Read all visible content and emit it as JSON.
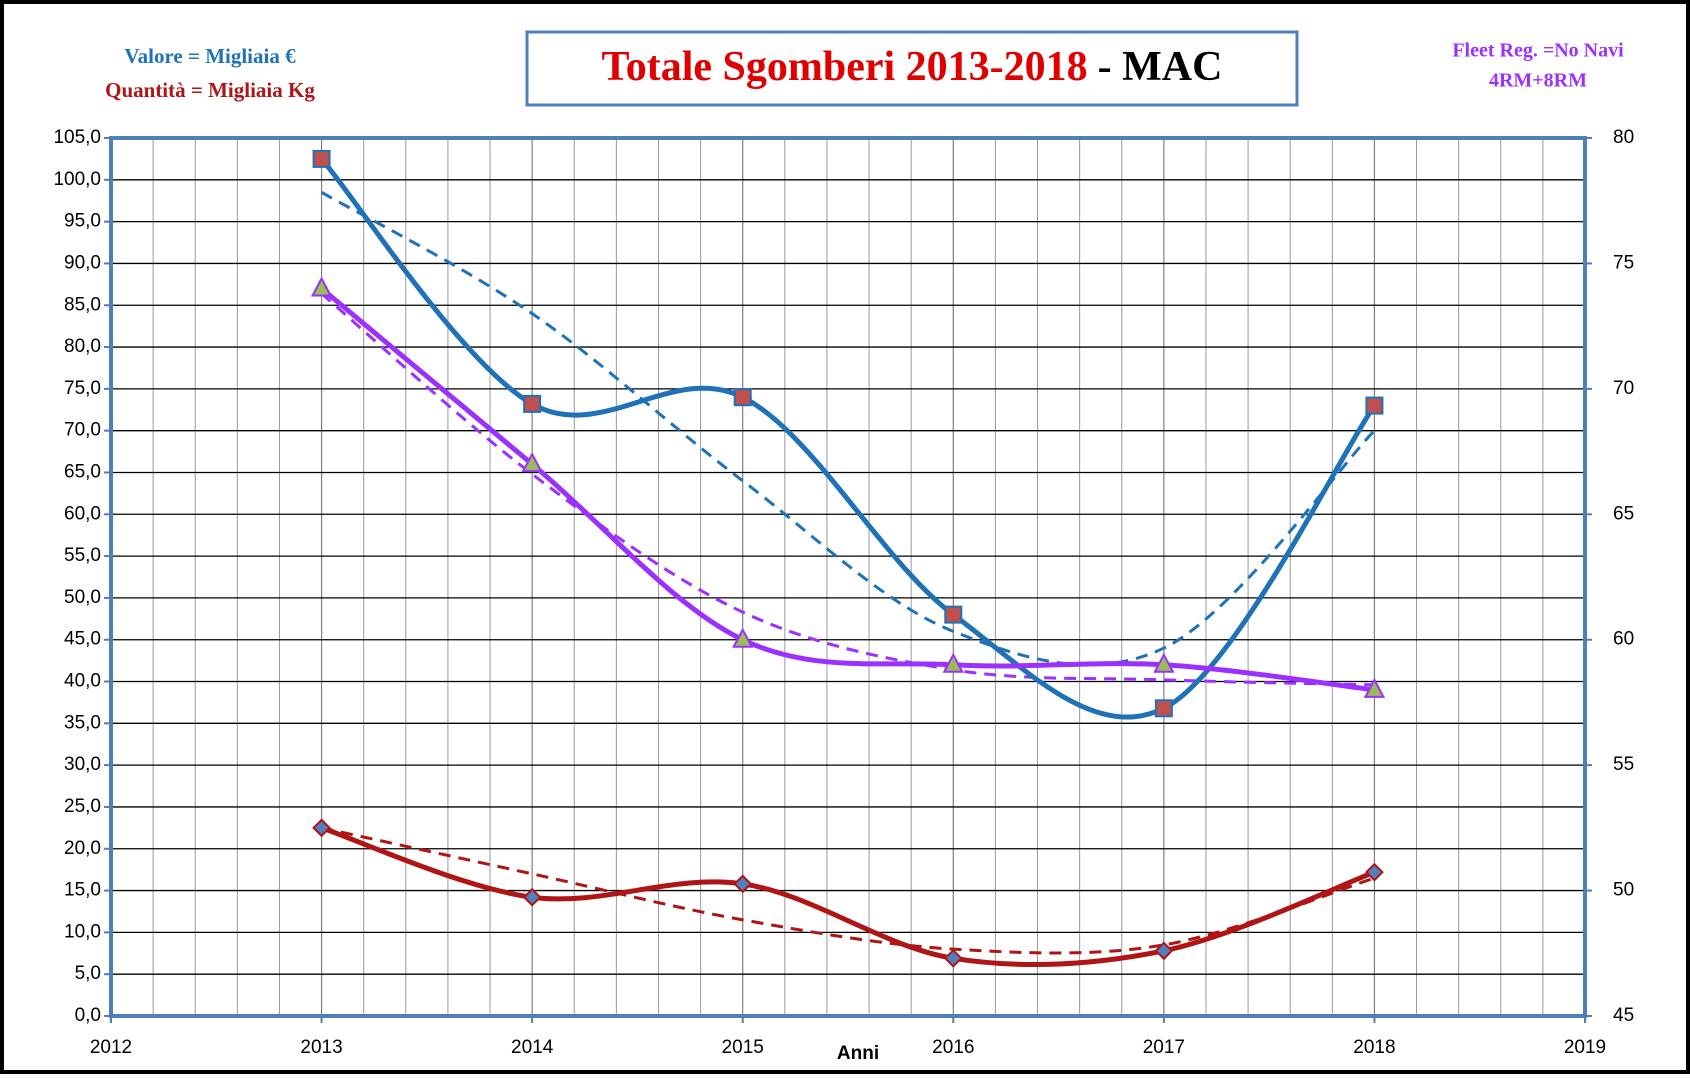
{
  "chart_data": {
    "type": "line",
    "title": "Totale Sgomberi 2013-2018",
    "title_suffix": "- MAC",
    "annotations": [
      "Valore = Migliaia €",
      "Quantità = Migliaia Kg",
      "Fleet Reg. =No Navi",
      "4RM+8RM"
    ],
    "xlabel": "Anni",
    "x": [
      2013,
      2014,
      2015,
      2016,
      2017,
      2018
    ],
    "xlim": [
      2012,
      2019
    ],
    "xticks": [
      2012,
      2013,
      2014,
      2015,
      2016,
      2017,
      2018,
      2019
    ],
    "ylim": [
      0,
      105
    ],
    "yticks": [
      {
        "value": 0,
        "label": "0,0"
      },
      {
        "value": 5,
        "label": "5,0"
      },
      {
        "value": 10,
        "label": "10,0"
      },
      {
        "value": 15,
        "label": "15,0"
      },
      {
        "value": 20,
        "label": "20,0"
      },
      {
        "value": 25,
        "label": "25,0"
      },
      {
        "value": 30,
        "label": "30,0"
      },
      {
        "value": 35,
        "label": "35,0"
      },
      {
        "value": 40,
        "label": "40,0"
      },
      {
        "value": 45,
        "label": "45,0"
      },
      {
        "value": 50,
        "label": "50,0"
      },
      {
        "value": 55,
        "label": "55,0"
      },
      {
        "value": 60,
        "label": "60,0"
      },
      {
        "value": 65,
        "label": "65,0"
      },
      {
        "value": 70,
        "label": "70,0"
      },
      {
        "value": 75,
        "label": "75,0"
      },
      {
        "value": 80,
        "label": "80,0"
      },
      {
        "value": 85,
        "label": "85,0"
      },
      {
        "value": 90,
        "label": "90,0"
      },
      {
        "value": 95,
        "label": "95,0"
      },
      {
        "value": 100,
        "label": "100,0"
      },
      {
        "value": 105,
        "label": "105,0"
      }
    ],
    "y2lim": [
      45,
      80
    ],
    "y2ticks": [
      45,
      50,
      55,
      60,
      65,
      70,
      75,
      80
    ],
    "grid": true,
    "series": [
      {
        "color": "#1f72b8",
        "marker": "square",
        "marker_fill": "#c0504d",
        "values": [
          102.5,
          73.2,
          74.0,
          48.0,
          36.8,
          73.0
        ]
      },
      {
        "color": "#b01414",
        "marker": "diamond",
        "marker_fill": "#4f81bd",
        "values": [
          22.5,
          14.2,
          15.8,
          6.9,
          7.8,
          17.2
        ]
      },
      {
        "color": "#9b30ff",
        "marker": "triangle",
        "marker_fill": "#9bbb59",
        "axis": "y2",
        "values": [
          74,
          67,
          60,
          59,
          59,
          58
        ]
      }
    ],
    "trendlines": [
      {
        "color": "#1f72b8",
        "values": [
          98.5,
          84,
          64,
          46,
          44,
          70
        ]
      },
      {
        "color": "#b01414",
        "values": [
          22.5,
          17,
          11.5,
          8,
          8.5,
          16.5
        ]
      },
      {
        "color": "#9b30ff",
        "axis": "y2",
        "values": [
          73.8,
          66.6,
          61.1,
          58.8,
          58.4,
          58.2
        ]
      }
    ]
  }
}
